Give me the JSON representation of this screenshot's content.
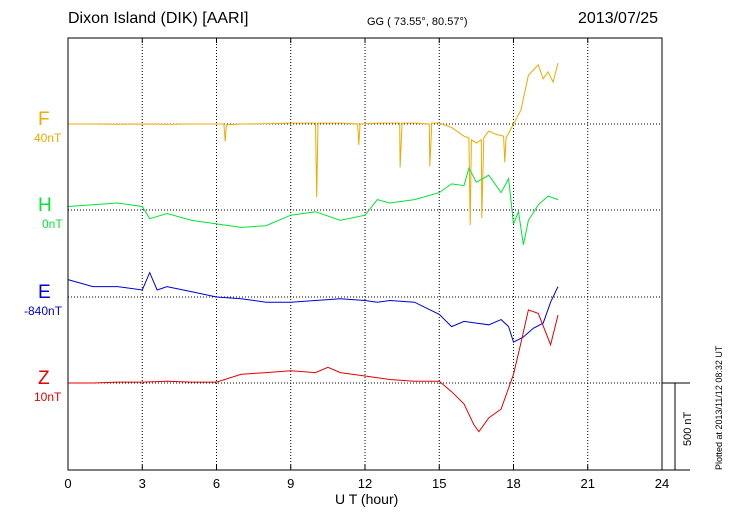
{
  "header": {
    "station": "Dixon Island (DIK)  [AARI]",
    "coords": "GG ( 73.55°,  80.57°)",
    "date": "2013/07/25"
  },
  "plotted_note": "Plotted at 2013/11/12 08:32 UT",
  "scale_label": "500 nT",
  "chart_data": {
    "type": "line",
    "xlabel": "U T (hour)",
    "xlim": [
      0,
      24
    ],
    "x_ticks": [
      "0",
      "3",
      "6",
      "9",
      "12",
      "15",
      "18",
      "21",
      "24"
    ],
    "grid": true,
    "series": [
      {
        "name": "F",
        "baseline_label": "40nT",
        "color": "#f0aa00",
        "x": [
          0,
          1,
          2,
          3,
          4,
          5,
          6,
          6.3,
          6.35,
          6.4,
          7,
          8,
          9,
          10,
          10.05,
          10.1,
          11,
          11.7,
          11.75,
          11.8,
          12.5,
          13.4,
          13.42,
          13.5,
          14,
          14.6,
          14.62,
          14.7,
          15,
          15.5,
          16,
          16.2,
          16.25,
          16.3,
          16.5,
          16.7,
          16.72,
          16.8,
          17,
          17.3,
          17.6,
          17.65,
          17.7,
          18,
          18.3,
          18.6,
          19,
          19.2,
          19.4,
          19.6,
          19.8
        ],
        "values": [
          0,
          0,
          -2,
          0,
          -2,
          0,
          0,
          0,
          -100,
          -5,
          0,
          2,
          5,
          5,
          -420,
          5,
          5,
          0,
          -120,
          0,
          5,
          5,
          -250,
          5,
          5,
          0,
          -245,
          5,
          5,
          -20,
          -70,
          -80,
          -580,
          -90,
          -110,
          -90,
          -540,
          -80,
          -40,
          -60,
          -70,
          -220,
          -80,
          0,
          80,
          280,
          340,
          260,
          300,
          240,
          350
        ]
      },
      {
        "name": "H",
        "baseline_label": "0nT",
        "color": "#00e632",
        "x": [
          0,
          1,
          2,
          3,
          3.3,
          4,
          5,
          6,
          7,
          8,
          9,
          10,
          11,
          12,
          12.5,
          13,
          14,
          15,
          15.5,
          16,
          16.2,
          16.5,
          17,
          17.5,
          17.8,
          18,
          18.2,
          18.4,
          18.6,
          19,
          19.4,
          19.8
        ],
        "values": [
          20,
          30,
          40,
          20,
          -50,
          -20,
          -60,
          -80,
          -100,
          -90,
          -30,
          -10,
          -60,
          -30,
          60,
          40,
          60,
          100,
          150,
          140,
          240,
          160,
          200,
          100,
          180,
          -80,
          -10,
          -200,
          -60,
          30,
          80,
          60
        ]
      },
      {
        "name": "E",
        "baseline_label": "-840nT",
        "color": "#0000dc",
        "x": [
          0,
          1,
          2,
          3,
          3.3,
          3.6,
          4,
          5,
          6,
          7,
          8,
          9,
          10,
          11,
          12,
          12.5,
          13,
          14,
          15,
          15.5,
          16,
          16.5,
          17,
          17.5,
          17.8,
          18,
          18.4,
          18.8,
          19.2,
          19.5,
          19.8
        ],
        "values": [
          100,
          60,
          60,
          40,
          140,
          40,
          60,
          30,
          0,
          -10,
          -30,
          -30,
          -20,
          -10,
          -20,
          -30,
          -20,
          -30,
          -100,
          -170,
          -140,
          -150,
          -160,
          -130,
          -170,
          -260,
          -230,
          -180,
          -150,
          -30,
          60
        ]
      },
      {
        "name": "Z",
        "baseline_label": "10nT",
        "color": "#e60000",
        "x": [
          0,
          1,
          2,
          3,
          4,
          5,
          6,
          7,
          8,
          9,
          10,
          10.5,
          11,
          12,
          13,
          14,
          15,
          15.5,
          16,
          16.4,
          16.6,
          17,
          17.5,
          18,
          18.3,
          18.6,
          19,
          19.5,
          19.8
        ],
        "values": [
          0,
          0,
          5,
          5,
          10,
          5,
          5,
          50,
          60,
          70,
          60,
          90,
          60,
          40,
          20,
          10,
          10,
          -50,
          -120,
          -240,
          -280,
          -200,
          -150,
          50,
          230,
          420,
          400,
          220,
          390
        ]
      }
    ]
  }
}
